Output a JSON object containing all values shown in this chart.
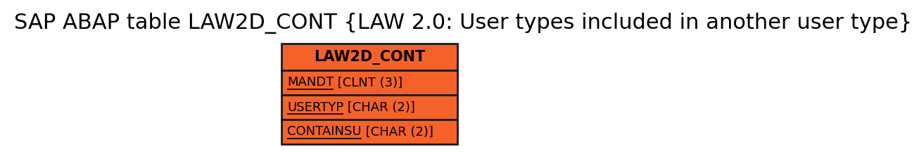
{
  "title": "SAP ABAP table LAW2D_CONT {LAW 2.0: User types included in another user type}",
  "title_fontsize": 22,
  "table_name": "LAW2D_CONT",
  "fields": [
    "MANDT [CLNT (3)]",
    "USERTYP [CHAR (2)]",
    "CONTAINSU [CHAR (2)]"
  ],
  "underlined_parts": [
    "MANDT",
    "USERTYP",
    "CONTAINSU"
  ],
  "box_color": "#f4622a",
  "border_color": "#1a1a1a",
  "text_color": "#000000",
  "background_color": "#ffffff",
  "field_fontsize": 13,
  "header_fontsize": 15
}
